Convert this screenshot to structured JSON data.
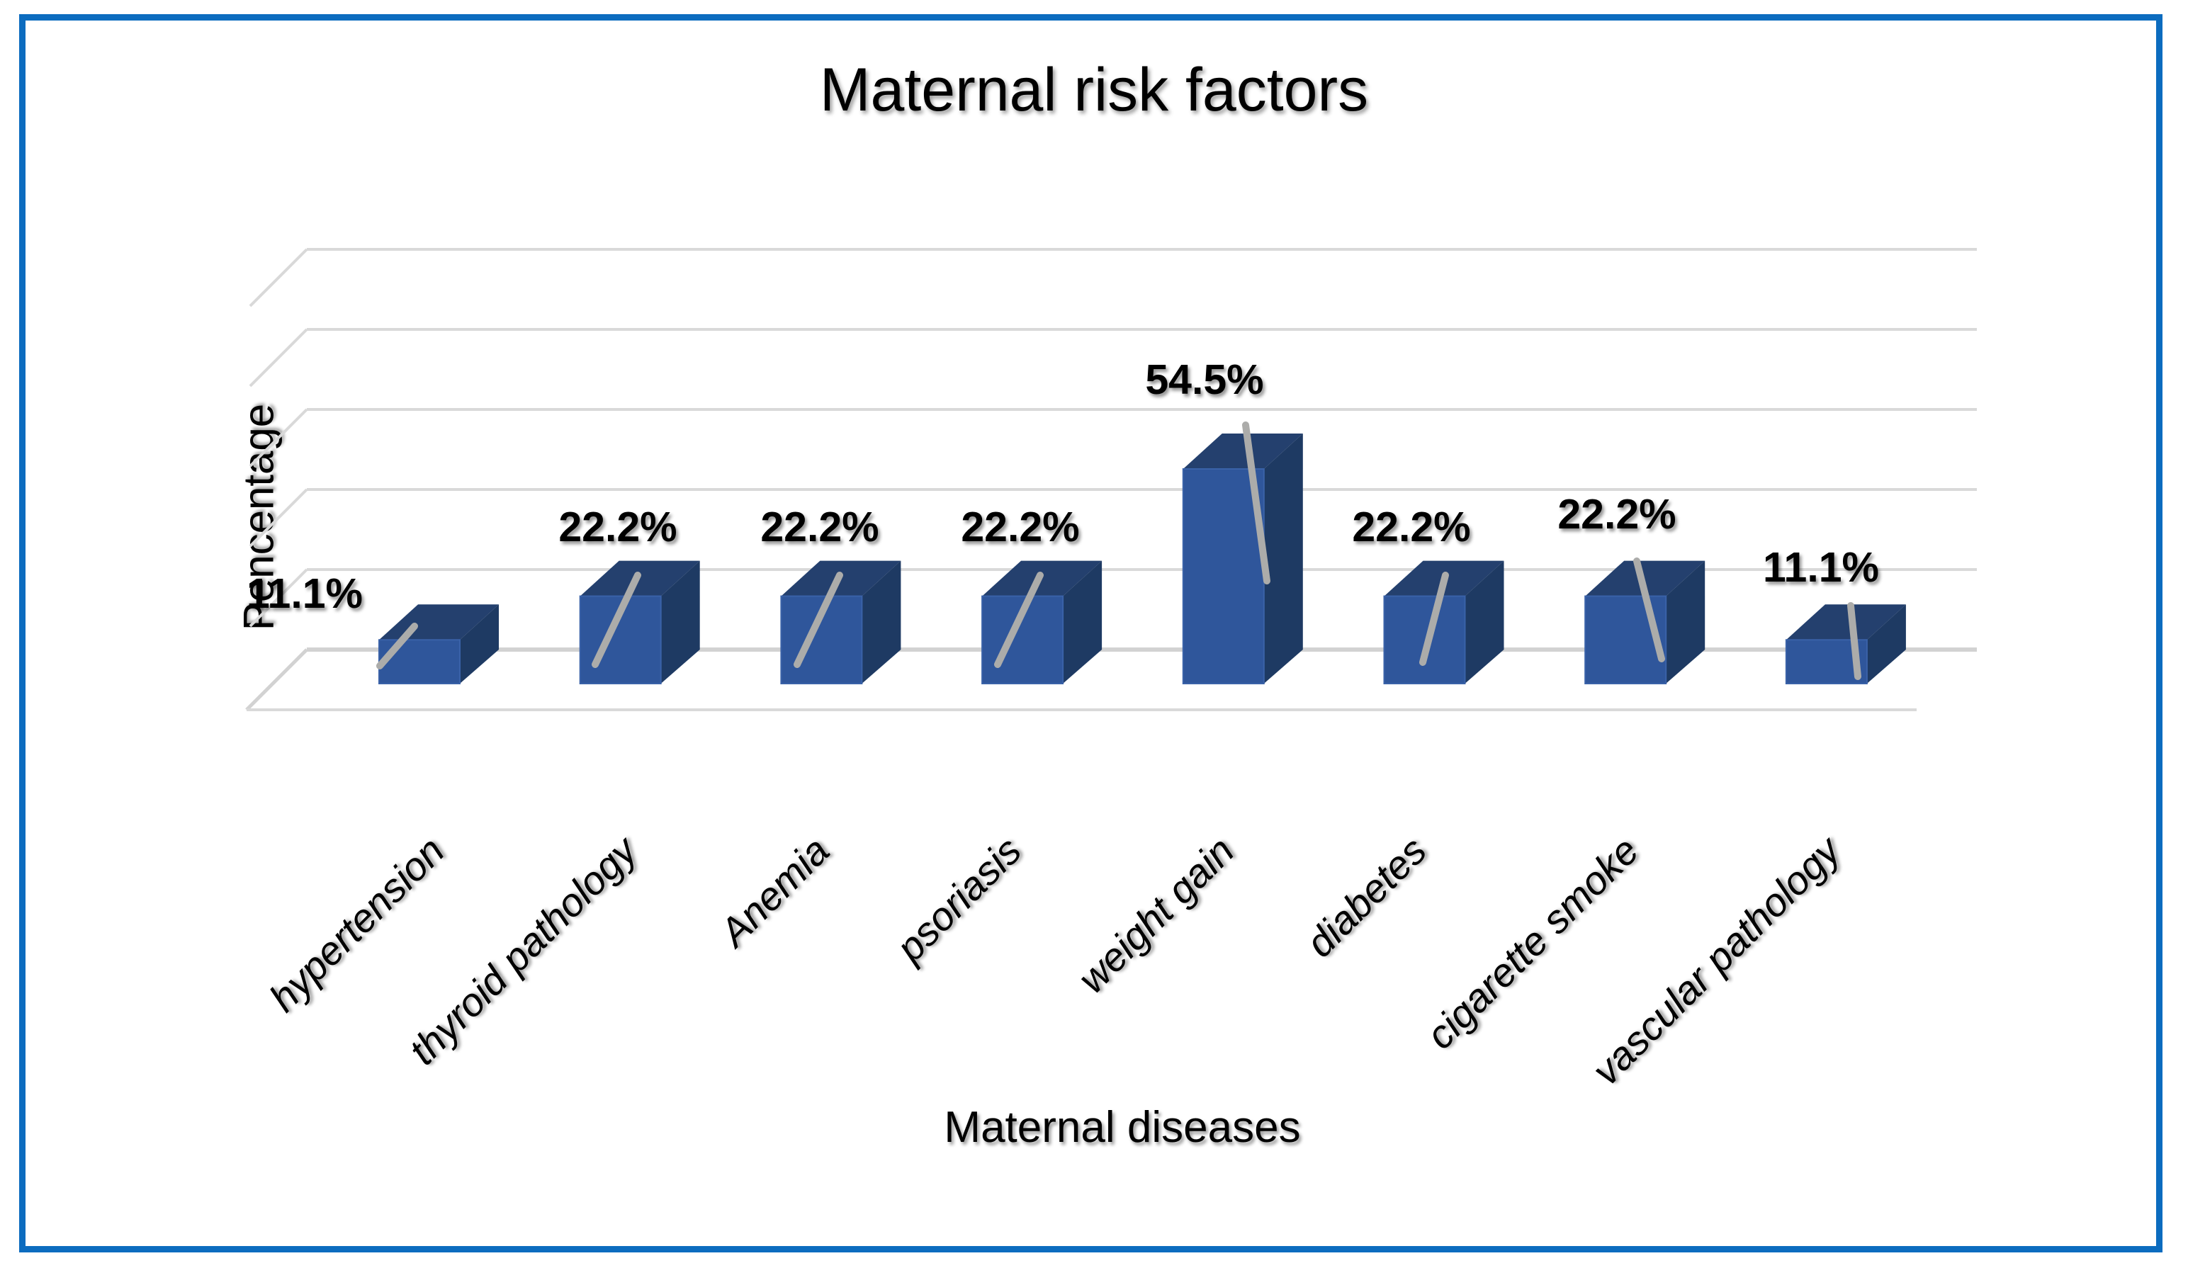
{
  "frame": {
    "border_color": "#0C6CBF"
  },
  "title": "Maternal risk factors",
  "y_axis_title": "Pencentage",
  "x_axis_title": "Maternal diseases",
  "chart_data": {
    "type": "bar",
    "projection": "3d",
    "title": "Maternal risk factors",
    "xlabel": "Maternal diseases",
    "ylabel": "Pencentage",
    "categories": [
      "hypertension",
      "thyroid pathology",
      "Anemia",
      "psoriasis",
      "weight gain",
      "diabetes",
      "cigarette smoke",
      "vascular pathology"
    ],
    "values": [
      11.1,
      22.2,
      22.2,
      22.2,
      54.5,
      22.2,
      22.2,
      11.1
    ],
    "data_labels": [
      "11.1%",
      "22.2%",
      "22.2%",
      "22.2%",
      "54.5%",
      "22.2%",
      "22.2%",
      "11.1%"
    ],
    "unit": "%",
    "ylim": [
      0,
      100
    ],
    "gridline_step_pct": 20,
    "grid": true,
    "legend": "none",
    "colors": {
      "bar_front": "#2F569B",
      "bar_top": "#24406E",
      "bar_side": "#1E3A63",
      "bar_bevel": "#3A62A8",
      "gridline": "#D9D9D9",
      "floor_line": "#D2D2D2",
      "leader_line": "#ACACAA"
    }
  }
}
